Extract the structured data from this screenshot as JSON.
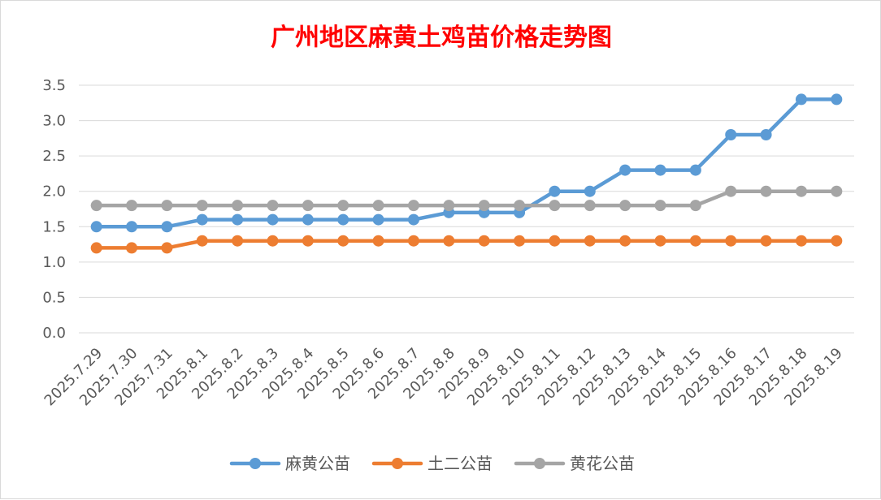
{
  "chart_data": {
    "type": "line",
    "title": "广州地区麻黄土鸡苗价格走势图",
    "title_color": "#FF0000",
    "xlabel": "",
    "ylabel": "",
    "ylim": [
      0,
      3.5
    ],
    "y_ticks": [
      "0.0",
      "0.5",
      "1.0",
      "1.5",
      "2.0",
      "2.5",
      "3.0",
      "3.5"
    ],
    "grid": true,
    "legend_position": "bottom",
    "categories": [
      "2025.7.29",
      "2025.7.30",
      "2025.7.31",
      "2025.8.1",
      "2025.8.2",
      "2025.8.3",
      "2025.8.4",
      "2025.8.5",
      "2025.8.6",
      "2025.8.7",
      "2025.8.8",
      "2025.8.9",
      "2025.8.10",
      "2025.8.11",
      "2025.8.12",
      "2025.8.13",
      "2025.8.14",
      "2025.8.15",
      "2025.8.16",
      "2025.8.17",
      "2025.8.18",
      "2025.8.19"
    ],
    "series": [
      {
        "name": "麻黄公苗",
        "color": "#5B9BD5",
        "values": [
          1.5,
          1.5,
          1.5,
          1.6,
          1.6,
          1.6,
          1.6,
          1.6,
          1.6,
          1.6,
          1.7,
          1.7,
          1.7,
          2.0,
          2.0,
          2.3,
          2.3,
          2.3,
          2.8,
          2.8,
          3.3,
          3.3
        ]
      },
      {
        "name": "土二公苗",
        "color": "#ED7D31",
        "values": [
          1.2,
          1.2,
          1.2,
          1.3,
          1.3,
          1.3,
          1.3,
          1.3,
          1.3,
          1.3,
          1.3,
          1.3,
          1.3,
          1.3,
          1.3,
          1.3,
          1.3,
          1.3,
          1.3,
          1.3,
          1.3,
          1.3
        ]
      },
      {
        "name": "黄花公苗",
        "color": "#A5A5A5",
        "values": [
          1.8,
          1.8,
          1.8,
          1.8,
          1.8,
          1.8,
          1.8,
          1.8,
          1.8,
          1.8,
          1.8,
          1.8,
          1.8,
          1.8,
          1.8,
          1.8,
          1.8,
          1.8,
          2.0,
          2.0,
          2.0,
          2.0
        ]
      }
    ]
  }
}
